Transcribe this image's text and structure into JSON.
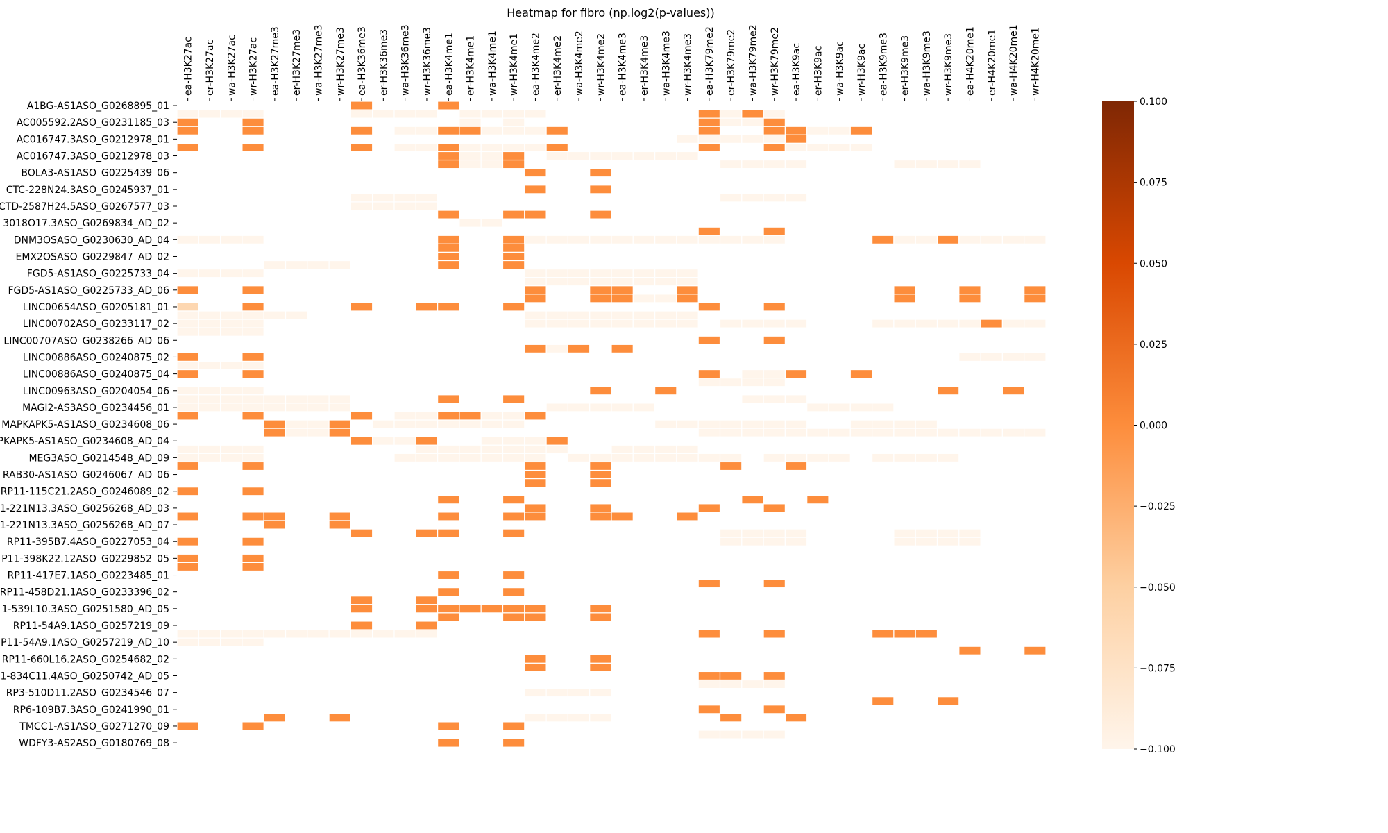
{
  "chart_data": {
    "type": "heatmap",
    "title": "Heatmap for fibro (np.log2(p-values))",
    "columns": [
      "ea-H3K27ac",
      "er-H3K27ac",
      "wa-H3K27ac",
      "wr-H3K27ac",
      "ea-H3K27me3",
      "er-H3K27me3",
      "wa-H3K27me3",
      "wr-H3K27me3",
      "ea-H3K36me3",
      "er-H3K36me3",
      "wa-H3K36me3",
      "wr-H3K36me3",
      "ea-H3K4me1",
      "er-H3K4me1",
      "wa-H3K4me1",
      "wr-H3K4me1",
      "ea-H3K4me2",
      "er-H3K4me2",
      "wa-H3K4me2",
      "wr-H3K4me2",
      "ea-H3K4me3",
      "er-H3K4me3",
      "wa-H3K4me3",
      "wr-H3K4me3",
      "ea-H3K79me2",
      "er-H3K79me2",
      "wa-H3K79me2",
      "wr-H3K79me2",
      "ea-H3K9ac",
      "er-H3K9ac",
      "wa-H3K9ac",
      "wr-H3K9ac",
      "ea-H3K9me3",
      "er-H3K9me3",
      "wa-H3K9me3",
      "wr-H3K9me3",
      "ea-H4K20me1",
      "er-H4K20me1",
      "wa-H4K20me1",
      "wr-H4K20me1"
    ],
    "row_count": 78,
    "row_labels": [
      {
        "row": 0,
        "text": "A1BG-AS1ASO_G0268895_01"
      },
      {
        "row": 2,
        "text": "AC005592.2ASO_G0231185_03"
      },
      {
        "row": 4,
        "text": "AC016747.3ASO_G0212978_01"
      },
      {
        "row": 6,
        "text": "AC016747.3ASO_G0212978_03"
      },
      {
        "row": 8,
        "text": "BOLA3-AS1ASO_G0225439_06"
      },
      {
        "row": 10,
        "text": "CTC-228N24.3ASO_G0245937_01"
      },
      {
        "row": 12,
        "text": "CTD-2587H24.5ASO_G0267577_03"
      },
      {
        "row": 14,
        "text": "3018O17.3ASO_G0269834_AD_02"
      },
      {
        "row": 16,
        "text": "DNM3OSASO_G0230630_AD_04"
      },
      {
        "row": 18,
        "text": "EMX2OSASO_G0229847_AD_02"
      },
      {
        "row": 20,
        "text": "FGD5-AS1ASO_G0225733_04"
      },
      {
        "row": 22,
        "text": "FGD5-AS1ASO_G0225733_AD_06"
      },
      {
        "row": 24,
        "text": "LINC00654ASO_G0205181_01"
      },
      {
        "row": 26,
        "text": "LINC00702ASO_G0233117_02"
      },
      {
        "row": 28,
        "text": "LINC00707ASO_G0238266_AD_06"
      },
      {
        "row": 30,
        "text": "LINC00886ASO_G0240875_02"
      },
      {
        "row": 32,
        "text": "LINC00886ASO_G0240875_04"
      },
      {
        "row": 34,
        "text": "LINC00963ASO_G0204054_06"
      },
      {
        "row": 36,
        "text": "MAGI2-AS3ASO_G0234456_01"
      },
      {
        "row": 38,
        "text": "MAPKAPK5-AS1ASO_G0234608_06"
      },
      {
        "row": 40,
        "text": "PKAPK5-AS1ASO_G0234608_AD_04"
      },
      {
        "row": 42,
        "text": "MEG3ASO_G0214548_AD_09"
      },
      {
        "row": 44,
        "text": "RAB30-AS1ASO_G0246067_AD_06"
      },
      {
        "row": 46,
        "text": "RP11-115C21.2ASO_G0246089_02"
      },
      {
        "row": 48,
        "text": "1-221N13.3ASO_G0256268_AD_03"
      },
      {
        "row": 50,
        "text": "1-221N13.3ASO_G0256268_AD_07"
      },
      {
        "row": 52,
        "text": "RP11-395B7.4ASO_G0227053_04"
      },
      {
        "row": 54,
        "text": "P11-398K22.12ASO_G0229852_05"
      },
      {
        "row": 56,
        "text": "RP11-417E7.1ASO_G0223485_01"
      },
      {
        "row": 58,
        "text": "RP11-458D21.1ASO_G0233396_02"
      },
      {
        "row": 60,
        "text": "1-539L10.3ASO_G0251580_AD_05"
      },
      {
        "row": 62,
        "text": "RP11-54A9.1ASO_G0257219_09"
      },
      {
        "row": 64,
        "text": "P11-54A9.1ASO_G0257219_AD_10"
      },
      {
        "row": 66,
        "text": "RP11-660L16.2ASO_G0254682_02"
      },
      {
        "row": 68,
        "text": "1-834C11.4ASO_G0250742_AD_05"
      },
      {
        "row": 70,
        "text": "RP3-510D11.2ASO_G0234546_07"
      },
      {
        "row": 72,
        "text": "RP6-109B7.3ASO_G0241990_01"
      },
      {
        "row": 74,
        "text": "TMCC1-AS1ASO_G0271270_09"
      },
      {
        "row": 76,
        "text": "WDFY3-AS2ASO_G0180769_08"
      }
    ],
    "value_range": [
      -0.1,
      0.1
    ],
    "colorbar_ticks": [
      "0.100",
      "0.075",
      "0.050",
      "0.025",
      "0.000",
      "−0.025",
      "−0.050",
      "−0.075",
      "−0.100"
    ],
    "colormap": [
      "#fff5eb",
      "#fdd0a2",
      "#fd8d3c",
      "#d94801",
      "#7f2704"
    ],
    "value_legend": {
      "L": -0.1,
      "M": 0.0,
      "X": -0.06
    },
    "data_rows": [
      "........M...M...........................",
      "LLLL....LLLL.LLLL.......MLML............",
      "M..M.........L.L........MLLM............",
      "M..M....M.LLMMLLLM......M..MMLLM........",
      ".......................LLLLLM...........",
      "M..M....M.LLMLLLLM......M..MLLLL........",
      "............MLLM.LLLLLLL................",
      "............MLLM.........LLLL....LLLL...",
      "................M..M.....................",
      "........................................",
      "................M..M.....................",
      "........LLLL.............LLLL...........",
      "........LLLL............................",
      "............M..MM..M....................",
      ".............LL.........................",
      "........................M..M............",
      "LLLL........M..MLLLLLLLLLLLL....MLLMLLLL",
      "............M..M........................",
      "............M..M........................",
      "....LLLL....M..M........................",
      "LLLL............LLLLLLLL................",
      "................LLLLLLLL................",
      "M..M............M..MM..M.........M..M..M.",
      "................M..MMLLM.........M..M..M.",
      "X..M....M..MM..M........M..M............",
      "LLLLLL..........LLLLLLLL................",
      "LLLL............LLLLLLLL.LLLL...LLLLLMLLM",
      "LLLL..........................................",
      "........................M..M............",
      "................MLM.M...................",
      "M..M................................LLLL",
      "LLLL....................................",
      "M..M....................M.LLM..M........",
      "........................LLLL....................",
      "LLLL...............M..M............M..M.",
      "LLLLLLLL....M..M..........LLL............",
      "LLLLLLLL.........LLLLL.......LLLL.........",
      "M..M....M.LLMMLLM.......................",
      "....MLLM.LLLLLLL......LLLLLLL..LLLL.....",
      "....MLLM................LLLLLLLLLLLLLLLLLL",
      "........MLLM..LLLM......................",
      "LLLL.......LLLLLLL..LLLL................",
      "LLLL......LLLLLLL.LLLLLLLL.LLLL.LLLL....",
      "M..M............M..M.....M..M...........",
      "................M..M.....................",
      "................M..M.....................",
      "M..M....................................",
      "............M..M..........M..M..........",
      "................M..M....M..M............",
      "M..MM..M....M..MM..MM..M.................",
      "....M..M................................",
      "........M..MM..M.........LLLL....LLLL...",
      "M..M.....................LLLL....LLLL...",
      "................................................",
      "M..M....................................",
      "M..M....................................",
      "............M..M........................",
      "........................M..M............",
      "............M..M........................",
      "........M..M............................",
      "........M..MMMMMM..M....................",
      "............M..MM..M....................",
      "........M..M............................",
      "LLLLLLLLLLLL............M..M....MMM......",
      "LLLL....................................",
      "....................................M..M",
      "................M..M....................",
      "................M..M....................",
      "........................MM.M............",
      "........................LLLL............",
      "................LLLL....................",
      "................................M..M....",
      "........................M..M............",
      "....M..M........LLLL.....M..M...........",
      "M..M........M..M........................",
      "........................LLLL............",
      "............M..M........................",
      "........................................"
    ]
  }
}
